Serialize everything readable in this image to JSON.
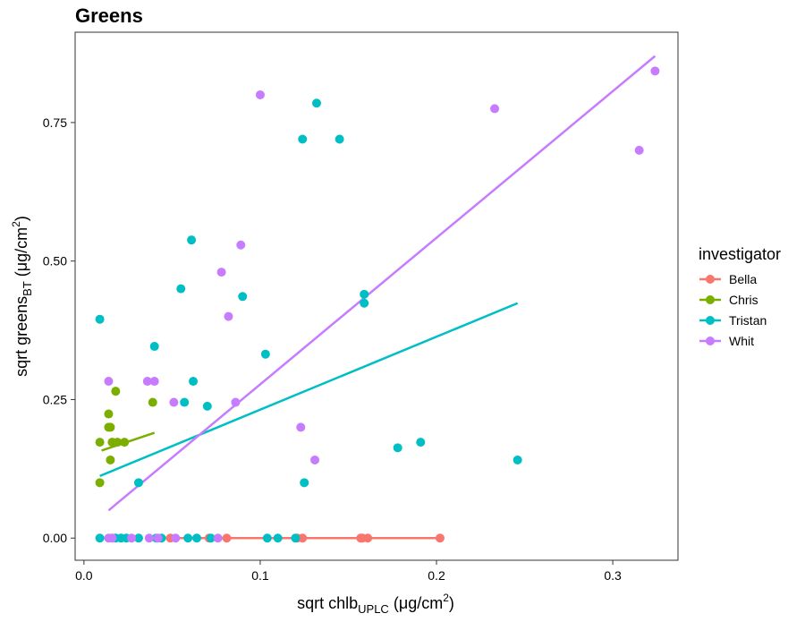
{
  "chart_data": {
    "type": "scatter",
    "title": "Greens",
    "xlabel": {
      "prefix": "sqrt chlb",
      "subscript": "UPLC",
      "unit_open": " (μg/cm",
      "unit_sup": "2",
      "unit_close": ")"
    },
    "ylabel": {
      "prefix": "sqrt greens",
      "subscript": "BT",
      "unit_open": " (μg/cm",
      "unit_sup": "2",
      "unit_close": ")"
    },
    "xlim": [
      -0.005,
      0.337
    ],
    "ylim": [
      -0.04,
      0.913
    ],
    "xticks": [
      {
        "value": 0.0,
        "label": "0.0"
      },
      {
        "value": 0.1,
        "label": "0.1"
      },
      {
        "value": 0.2,
        "label": "0.2"
      },
      {
        "value": 0.3,
        "label": "0.3"
      }
    ],
    "yticks": [
      {
        "value": 0.0,
        "label": "0.00"
      },
      {
        "value": 0.25,
        "label": "0.25"
      },
      {
        "value": 0.5,
        "label": "0.50"
      },
      {
        "value": 0.75,
        "label": "0.75"
      }
    ],
    "grid": false,
    "legend": {
      "title": "investigator",
      "placement": "right"
    },
    "series": [
      {
        "name": "Bella",
        "color": "#F8766D",
        "points": [
          [
            0.049,
            0
          ],
          [
            0.071,
            0
          ],
          [
            0.081,
            0
          ],
          [
            0.121,
            0
          ],
          [
            0.124,
            0
          ],
          [
            0.157,
            0
          ],
          [
            0.158,
            0
          ],
          [
            0.161,
            0
          ],
          [
            0.202,
            0
          ]
        ],
        "fit": [
          [
            0.049,
            0.0
          ],
          [
            0.202,
            0.0
          ]
        ]
      },
      {
        "name": "Chris",
        "color": "#7CAE00",
        "points": [
          [
            0.009,
            0.173
          ],
          [
            0.009,
            0.1
          ],
          [
            0.014,
            0.224
          ],
          [
            0.014,
            0.2
          ],
          [
            0.015,
            0.2
          ],
          [
            0.015,
            0.141
          ],
          [
            0.016,
            0.173
          ],
          [
            0.018,
            0.265
          ],
          [
            0.019,
            0.173
          ],
          [
            0.023,
            0.173
          ],
          [
            0.039,
            0.245
          ]
        ],
        "fit": [
          [
            0.01,
            0.158
          ],
          [
            0.04,
            0.19
          ]
        ]
      },
      {
        "name": "Tristan",
        "color": "#00BFC4",
        "points": [
          [
            0.009,
            0
          ],
          [
            0.009,
            0.395
          ],
          [
            0.018,
            0
          ],
          [
            0.021,
            0
          ],
          [
            0.024,
            0
          ],
          [
            0.031,
            0
          ],
          [
            0.031,
            0.1
          ],
          [
            0.04,
            0.346
          ],
          [
            0.041,
            0
          ],
          [
            0.044,
            0
          ],
          [
            0.055,
            0.45
          ],
          [
            0.057,
            0.245
          ],
          [
            0.059,
            0
          ],
          [
            0.061,
            0.538
          ],
          [
            0.062,
            0.283
          ],
          [
            0.064,
            0
          ],
          [
            0.07,
            0.238
          ],
          [
            0.072,
            0
          ],
          [
            0.09,
            0.436
          ],
          [
            0.103,
            0.332
          ],
          [
            0.104,
            0
          ],
          [
            0.11,
            0
          ],
          [
            0.12,
            0
          ],
          [
            0.124,
            0.72
          ],
          [
            0.125,
            0.1
          ],
          [
            0.132,
            0.785
          ],
          [
            0.145,
            0.72
          ],
          [
            0.159,
            0.44
          ],
          [
            0.159,
            0.424
          ],
          [
            0.178,
            0.163
          ],
          [
            0.191,
            0.173
          ],
          [
            0.246,
            0.141
          ]
        ],
        "fit": [
          [
            0.009,
            0.112
          ],
          [
            0.246,
            0.424
          ]
        ]
      },
      {
        "name": "Whit",
        "color": "#C77CFF",
        "points": [
          [
            0.014,
            0.283
          ],
          [
            0.014,
            0
          ],
          [
            0.016,
            0
          ],
          [
            0.027,
            0
          ],
          [
            0.036,
            0.283
          ],
          [
            0.037,
            0
          ],
          [
            0.04,
            0.283
          ],
          [
            0.042,
            0
          ],
          [
            0.051,
            0.245
          ],
          [
            0.052,
            0
          ],
          [
            0.076,
            0
          ],
          [
            0.078,
            0.48
          ],
          [
            0.082,
            0.4
          ],
          [
            0.086,
            0.245
          ],
          [
            0.089,
            0.529
          ],
          [
            0.1,
            0.8
          ],
          [
            0.123,
            0.2
          ],
          [
            0.131,
            0.141
          ],
          [
            0.233,
            0.775
          ],
          [
            0.315,
            0.7
          ],
          [
            0.324,
            0.843
          ]
        ],
        "fit": [
          [
            0.014,
            0.05
          ],
          [
            0.324,
            0.87
          ]
        ]
      }
    ]
  }
}
